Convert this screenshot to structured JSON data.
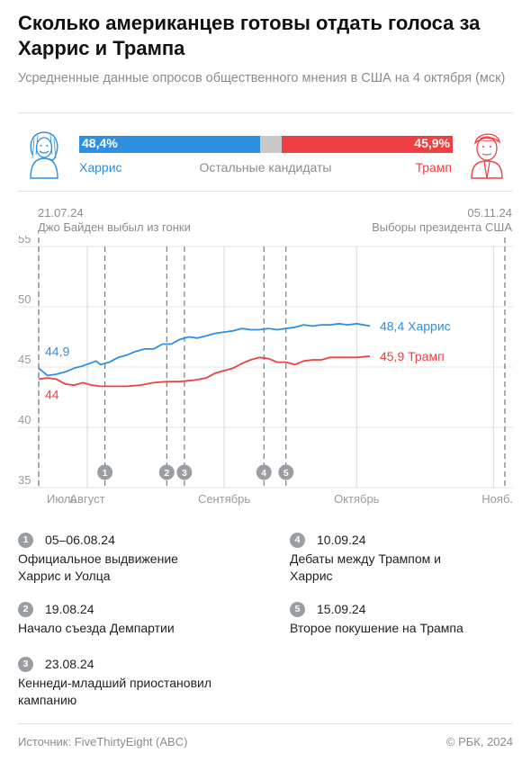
{
  "title": "Сколько американцев готовы отдать голоса за Харрис и Трампа",
  "subtitle": "Усредненные данные опросов общественного мнения в США на 4 октября (мск)",
  "summary": {
    "harris_pct": "48,4%",
    "trump_pct": "45,9%",
    "harris_label": "Харрис",
    "others_label": "Остальные кандидаты",
    "trump_label": "Трамп",
    "harris_value": 48.4,
    "trump_value": 45.9,
    "colors": {
      "harris": "#2e8fe0",
      "trump": "#ef3f43",
      "others": "#c8c8c8"
    }
  },
  "markers": {
    "start_date": "21.07.24",
    "start_text": "Джо Байден выбыл из гонки",
    "end_date": "05.11.24",
    "end_text": "Выборы президента США"
  },
  "chart_data": {
    "type": "line",
    "ylim": [
      35,
      55
    ],
    "yticks": [
      "55",
      "50",
      "45",
      "40",
      "35"
    ],
    "xlim": [
      "2024-07-21",
      "2024-11-05"
    ],
    "xticks": [
      {
        "label": "Июль",
        "date": "2024-07-21"
      },
      {
        "label": "Август",
        "date": "2024-08-01"
      },
      {
        "label": "Сентябрь",
        "date": "2024-09-01"
      },
      {
        "label": "Октябрь",
        "date": "2024-10-01"
      },
      {
        "label": "Нояб.",
        "date": "2024-11-01"
      }
    ],
    "series": [
      {
        "name": "Харрис",
        "color": "#2e8fe0",
        "start_label": "44,9",
        "end_label": "48,4 Харрис",
        "points": [
          [
            "2024-07-21",
            44.9
          ],
          [
            "2024-07-23",
            44.3
          ],
          [
            "2024-07-25",
            44.4
          ],
          [
            "2024-07-27",
            44.6
          ],
          [
            "2024-07-29",
            44.9
          ],
          [
            "2024-07-31",
            45.1
          ],
          [
            "2024-08-03",
            45.5
          ],
          [
            "2024-08-04",
            45.2
          ],
          [
            "2024-08-06",
            45.4
          ],
          [
            "2024-08-08",
            45.8
          ],
          [
            "2024-08-10",
            46.0
          ],
          [
            "2024-08-12",
            46.3
          ],
          [
            "2024-08-14",
            46.5
          ],
          [
            "2024-08-16",
            46.5
          ],
          [
            "2024-08-18",
            46.9
          ],
          [
            "2024-08-20",
            46.9
          ],
          [
            "2024-08-22",
            47.3
          ],
          [
            "2024-08-24",
            47.5
          ],
          [
            "2024-08-26",
            47.4
          ],
          [
            "2024-08-28",
            47.6
          ],
          [
            "2024-08-30",
            47.8
          ],
          [
            "2024-09-01",
            47.9
          ],
          [
            "2024-09-03",
            48.0
          ],
          [
            "2024-09-05",
            48.2
          ],
          [
            "2024-09-07",
            48.1
          ],
          [
            "2024-09-09",
            48.1
          ],
          [
            "2024-09-11",
            48.2
          ],
          [
            "2024-09-13",
            48.1
          ],
          [
            "2024-09-15",
            48.2
          ],
          [
            "2024-09-17",
            48.3
          ],
          [
            "2024-09-19",
            48.5
          ],
          [
            "2024-09-21",
            48.4
          ],
          [
            "2024-09-23",
            48.5
          ],
          [
            "2024-09-25",
            48.5
          ],
          [
            "2024-09-27",
            48.6
          ],
          [
            "2024-09-29",
            48.5
          ],
          [
            "2024-10-01",
            48.6
          ],
          [
            "2024-10-04",
            48.4
          ]
        ]
      },
      {
        "name": "Трамп",
        "color": "#ef3f43",
        "start_label": "44",
        "end_label": "45,9 Трамп",
        "points": [
          [
            "2024-07-21",
            44.0
          ],
          [
            "2024-07-23",
            44.1
          ],
          [
            "2024-07-25",
            44.0
          ],
          [
            "2024-07-27",
            43.6
          ],
          [
            "2024-07-29",
            43.5
          ],
          [
            "2024-07-31",
            43.7
          ],
          [
            "2024-08-02",
            43.5
          ],
          [
            "2024-08-04",
            43.4
          ],
          [
            "2024-08-07",
            43.4
          ],
          [
            "2024-08-10",
            43.4
          ],
          [
            "2024-08-13",
            43.5
          ],
          [
            "2024-08-16",
            43.7
          ],
          [
            "2024-08-19",
            43.8
          ],
          [
            "2024-08-22",
            43.8
          ],
          [
            "2024-08-25",
            43.9
          ],
          [
            "2024-08-28",
            44.1
          ],
          [
            "2024-08-30",
            44.5
          ],
          [
            "2024-09-01",
            44.7
          ],
          [
            "2024-09-03",
            44.9
          ],
          [
            "2024-09-05",
            45.3
          ],
          [
            "2024-09-07",
            45.6
          ],
          [
            "2024-09-09",
            45.8
          ],
          [
            "2024-09-11",
            45.7
          ],
          [
            "2024-09-13",
            45.4
          ],
          [
            "2024-09-15",
            45.4
          ],
          [
            "2024-09-17",
            45.2
          ],
          [
            "2024-09-19",
            45.5
          ],
          [
            "2024-09-21",
            45.6
          ],
          [
            "2024-09-23",
            45.6
          ],
          [
            "2024-09-25",
            45.8
          ],
          [
            "2024-09-27",
            45.8
          ],
          [
            "2024-09-29",
            45.8
          ],
          [
            "2024-10-01",
            45.8
          ],
          [
            "2024-10-04",
            45.9
          ]
        ]
      }
    ],
    "event_lines": [
      {
        "num": "1",
        "date": "2024-08-05"
      },
      {
        "num": "2",
        "date": "2024-08-19"
      },
      {
        "num": "3",
        "date": "2024-08-23"
      },
      {
        "num": "4",
        "date": "2024-09-10"
      },
      {
        "num": "5",
        "date": "2024-09-15"
      }
    ]
  },
  "events": [
    {
      "num": "1",
      "date": "05–06.08.24",
      "text": "Официальное выдвижение Харрис и Уолца"
    },
    {
      "num": "2",
      "date": "19.08.24",
      "text": "Начало съезда Демпартии"
    },
    {
      "num": "3",
      "date": "23.08.24",
      "text": "Кеннеди-младший приостановил кампанию"
    },
    {
      "num": "4",
      "date": "10.09.24",
      "text": "Дебаты между Трампом и Харрис"
    },
    {
      "num": "5",
      "date": "15.09.24",
      "text": "Второе покушение на Трампа"
    }
  ],
  "footer": {
    "source": "Источник: FiveThirtyEight (ABC)",
    "copyright": "© РБК, 2024"
  }
}
